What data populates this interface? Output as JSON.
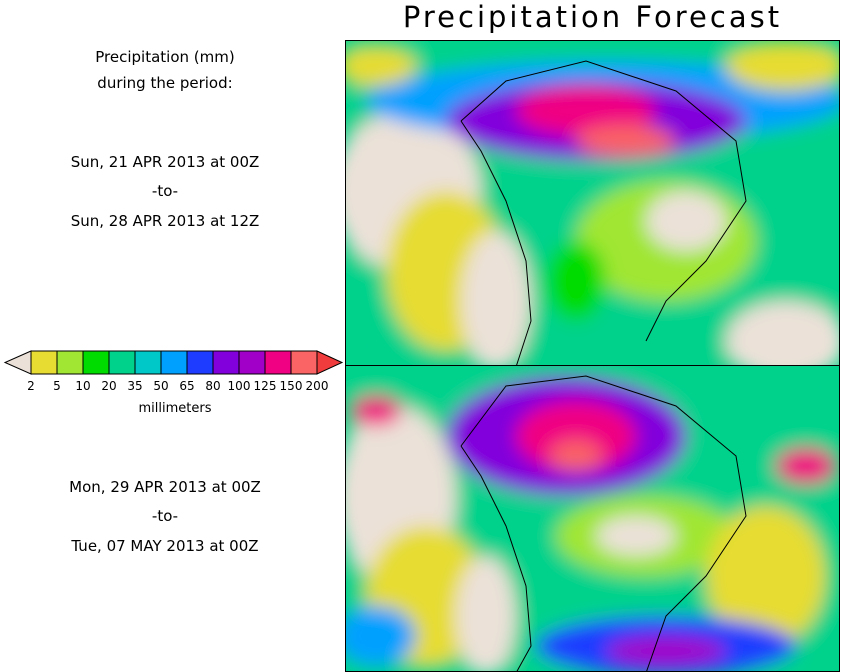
{
  "title": "Precipitation Forecast",
  "legend_header": {
    "line1": "Precipitation (mm)",
    "line2": "during the period:"
  },
  "period1": {
    "start": "Sun, 21 APR 2013 at 00Z",
    "sep": "-to-",
    "end": "Sun, 28 APR 2013 at 12Z"
  },
  "period2": {
    "start": "Mon, 29 APR 2013 at 00Z",
    "sep": "-to-",
    "end": "Tue, 07 MAY 2013 at 00Z"
  },
  "colorbar": {
    "labels": [
      "2",
      "5",
      "10",
      "20",
      "35",
      "50",
      "65",
      "80",
      "100",
      "125",
      "150",
      "200"
    ],
    "unit": "millimeters",
    "under_color": "#ebe1d8",
    "colors": [
      "#e6dc32",
      "#a0e632",
      "#00dc00",
      "#00d28c",
      "#00c8c8",
      "#00a0ff",
      "#1e3cff",
      "#8200dc",
      "#a000c8",
      "#f00082",
      "#fa6464"
    ],
    "over_color": "#f03c3c"
  }
}
